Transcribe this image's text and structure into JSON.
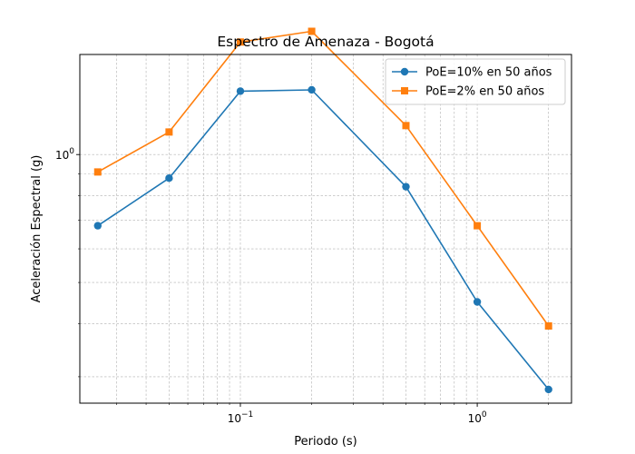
{
  "chart_data": {
    "type": "line",
    "title": "Espectro de Amenaza - Bogotá",
    "xlabel": "Periodo (s)",
    "ylabel": "Aceleración Espectral (g)",
    "x_scale": "log",
    "y_scale": "log",
    "xlim": [
      0.021,
      2.5
    ],
    "ylim": [
      0.26,
      1.72
    ],
    "grid": true,
    "legend_position": "top-right",
    "x_tick_labels": [
      {
        "value": 0.1,
        "base": "10",
        "exp": "−1"
      },
      {
        "value": 1,
        "base": "10",
        "exp": "0"
      }
    ],
    "y_tick_labels": [
      {
        "value": 1,
        "base": "10",
        "exp": "0"
      }
    ],
    "x": [
      0.025,
      0.05,
      0.1,
      0.2,
      0.5,
      1.0,
      2.0
    ],
    "series": [
      {
        "name": "PoE=10% en 50 años",
        "color": "#1f77b4",
        "marker": "circle",
        "values": [
          0.68,
          0.88,
          1.41,
          1.42,
          0.84,
          0.45,
          0.28
        ]
      },
      {
        "name": "PoE=2% en 50 años",
        "color": "#ff7f0e",
        "marker": "square",
        "values": [
          0.91,
          1.13,
          1.84,
          1.95,
          1.17,
          0.68,
          0.395
        ]
      }
    ]
  }
}
